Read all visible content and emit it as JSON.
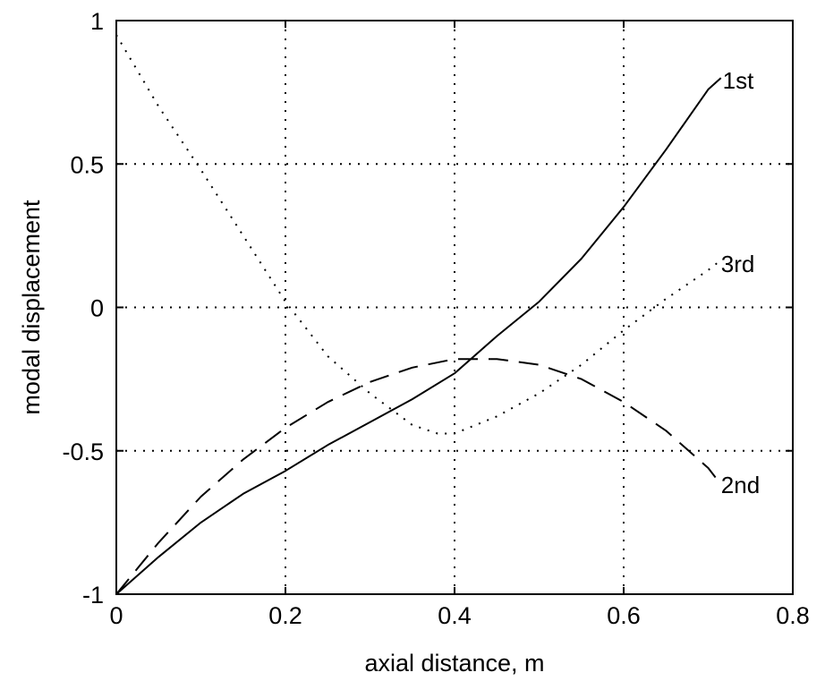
{
  "chart_data": {
    "type": "line",
    "xlabel": "axial distance, m",
    "ylabel": "modal displacement",
    "xlim": [
      0,
      0.8
    ],
    "ylim": [
      -1,
      1
    ],
    "xticks": [
      0,
      0.2,
      0.4,
      0.6,
      0.8
    ],
    "yticks": [
      -1,
      -0.5,
      0,
      0.5,
      1
    ],
    "xtick_labels": [
      "0",
      "0.2",
      "0.4",
      "0.6",
      "0.8"
    ],
    "ytick_labels": [
      "-1",
      "-0.5",
      "0",
      "0.5",
      "1"
    ],
    "grid": true,
    "grid_style": "dotted",
    "series": [
      {
        "name": "1st",
        "line_style": "solid",
        "x": [
          0,
          0.05,
          0.1,
          0.15,
          0.2,
          0.25,
          0.3,
          0.35,
          0.4,
          0.45,
          0.5,
          0.55,
          0.6,
          0.65,
          0.7,
          0.715
        ],
        "y": [
          -1,
          -0.87,
          -0.75,
          -0.65,
          -0.57,
          -0.48,
          -0.4,
          -0.32,
          -0.23,
          -0.1,
          0.02,
          0.17,
          0.35,
          0.55,
          0.76,
          0.8
        ]
      },
      {
        "name": "2nd",
        "line_style": "dashed",
        "x": [
          0,
          0.05,
          0.1,
          0.15,
          0.2,
          0.25,
          0.3,
          0.35,
          0.4,
          0.43,
          0.45,
          0.5,
          0.55,
          0.6,
          0.65,
          0.7,
          0.713
        ],
        "y": [
          -1,
          -0.82,
          -0.66,
          -0.53,
          -0.42,
          -0.33,
          -0.26,
          -0.21,
          -0.18,
          -0.18,
          -0.18,
          -0.2,
          -0.25,
          -0.33,
          -0.43,
          -0.56,
          -0.61
        ]
      },
      {
        "name": "3rd",
        "line_style": "dotted",
        "x": [
          0,
          0.05,
          0.1,
          0.15,
          0.2,
          0.25,
          0.3,
          0.35,
          0.38,
          0.4,
          0.45,
          0.5,
          0.55,
          0.6,
          0.65,
          0.7,
          0.713
        ],
        "y": [
          0.95,
          0.7,
          0.48,
          0.25,
          0.02,
          -0.17,
          -0.3,
          -0.41,
          -0.44,
          -0.44,
          -0.38,
          -0.3,
          -0.2,
          -0.08,
          0.03,
          0.13,
          0.16
        ]
      }
    ]
  }
}
